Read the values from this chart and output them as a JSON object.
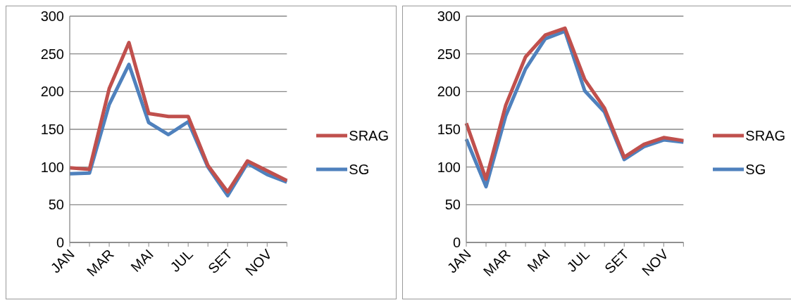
{
  "chart_data": [
    {
      "type": "line",
      "categories": [
        "JAN",
        null,
        "MAR",
        null,
        "MAI",
        null,
        "JUL",
        null,
        "SET",
        null,
        "NOV",
        null
      ],
      "series": [
        {
          "name": "SRAG",
          "color": "#c0504d",
          "values": [
            99,
            97,
            204,
            265,
            171,
            167,
            167,
            102,
            67,
            108,
            95,
            82
          ]
        },
        {
          "name": "SG",
          "color": "#4f81bd",
          "values": [
            91,
            92,
            183,
            236,
            159,
            143,
            160,
            100,
            62,
            105,
            90,
            80
          ]
        }
      ],
      "ylim": [
        0,
        300
      ],
      "yticks": [
        0,
        50,
        100,
        150,
        200,
        250,
        300
      ],
      "grid": "y",
      "legend": "right",
      "marker": "none",
      "line_style": "solid"
    },
    {
      "type": "line",
      "categories": [
        "JAN",
        null,
        "MAR",
        null,
        "MAI",
        null,
        "JUL",
        null,
        "SET",
        null,
        "NOV",
        null
      ],
      "series": [
        {
          "name": "SRAG",
          "color": "#c0504d",
          "values": [
            158,
            84,
            182,
            246,
            275,
            284,
            216,
            178,
            113,
            130,
            139,
            135
          ]
        },
        {
          "name": "SG",
          "color": "#4f81bd",
          "values": [
            137,
            74,
            168,
            230,
            270,
            280,
            201,
            173,
            110,
            127,
            136,
            133
          ]
        }
      ],
      "ylim": [
        0,
        300
      ],
      "yticks": [
        0,
        50,
        100,
        150,
        200,
        250,
        300
      ],
      "grid": "y",
      "legend": "right",
      "marker": "none",
      "line_style": "solid"
    }
  ]
}
